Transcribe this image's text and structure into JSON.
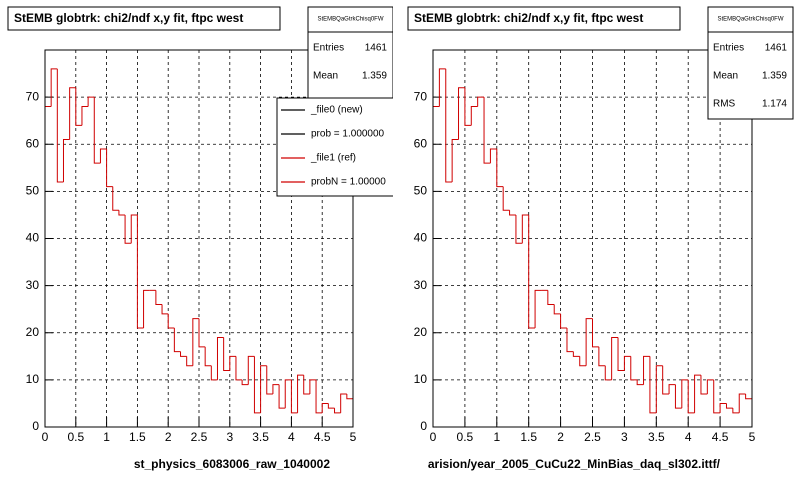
{
  "chart_data": [
    {
      "type": "histogram",
      "title": "StEMB globtrk: chi2/ndf x,y fit, ftpc west",
      "x_label": "st_physics_6083006_raw_1040002",
      "bins": [
        0,
        0.1,
        0.2,
        0.3,
        0.4,
        0.5,
        0.6,
        0.7,
        0.8,
        0.9,
        1,
        1.1,
        1.2,
        1.3,
        1.4,
        1.5,
        1.6,
        1.7,
        1.8,
        1.9,
        2,
        2.1,
        2.2,
        2.3,
        2.4,
        2.5,
        2.6,
        2.7,
        2.8,
        2.9,
        3,
        3.1,
        3.2,
        3.3,
        3.4,
        3.5,
        3.6,
        3.7,
        3.8,
        3.9,
        4,
        4.1,
        4.2,
        4.3,
        4.4,
        4.5,
        4.6,
        4.7,
        4.8,
        4.9,
        5
      ],
      "series": [
        {
          "name": "_file1 (ref)",
          "color": "#d00000",
          "values": [
            68,
            76,
            52,
            61,
            72,
            64,
            68,
            70,
            56,
            59,
            51,
            46,
            45,
            39,
            45,
            21,
            29,
            29,
            26,
            24,
            21,
            16,
            15,
            13,
            23,
            17,
            13,
            10,
            19,
            12,
            15,
            10,
            9,
            15,
            3,
            13,
            7,
            9,
            4,
            10,
            3,
            11,
            7,
            10,
            3,
            5,
            4,
            3,
            7,
            6
          ]
        }
      ],
      "xlim": [
        0,
        5
      ],
      "ylim": [
        0,
        80
      ],
      "xticks": [
        0,
        0.5,
        1,
        1.5,
        2,
        2.5,
        3,
        3.5,
        4,
        4.5,
        5
      ],
      "yticks": [
        0,
        10,
        20,
        30,
        40,
        50,
        60,
        70
      ],
      "grid": true,
      "stats": {
        "name": "StEMBQaGtrkChisq0FW",
        "entries_label": "Entries",
        "entries": 1461,
        "mean_label": "Mean",
        "mean": 1.359
      },
      "legend": [
        {
          "label": "_file0 (new)",
          "color": "#000000"
        },
        {
          "label": "prob = 1.000000",
          "color": "#000000"
        },
        {
          "label": "_file1 (ref)",
          "color": "#d00000"
        },
        {
          "label": "probN = 1.00000",
          "color": "#d00000"
        }
      ]
    },
    {
      "type": "histogram",
      "title": "StEMB globtrk: chi2/ndf x,y fit, ftpc west",
      "x_label": "arision/year_2005_CuCu22_MinBias_daq_sl302.ittf/",
      "bins": [
        0,
        0.1,
        0.2,
        0.3,
        0.4,
        0.5,
        0.6,
        0.7,
        0.8,
        0.9,
        1,
        1.1,
        1.2,
        1.3,
        1.4,
        1.5,
        1.6,
        1.7,
        1.8,
        1.9,
        2,
        2.1,
        2.2,
        2.3,
        2.4,
        2.5,
        2.6,
        2.7,
        2.8,
        2.9,
        3,
        3.1,
        3.2,
        3.3,
        3.4,
        3.5,
        3.6,
        3.7,
        3.8,
        3.9,
        4,
        4.1,
        4.2,
        4.3,
        4.4,
        4.5,
        4.6,
        4.7,
        4.8,
        4.9,
        5
      ],
      "series": [
        {
          "name": "_file1 (ref)",
          "color": "#d00000",
          "values": [
            68,
            76,
            52,
            61,
            72,
            64,
            68,
            70,
            56,
            59,
            51,
            46,
            45,
            39,
            45,
            21,
            29,
            29,
            26,
            24,
            21,
            16,
            15,
            13,
            23,
            17,
            13,
            10,
            19,
            12,
            15,
            10,
            9,
            15,
            3,
            13,
            7,
            9,
            4,
            10,
            3,
            11,
            7,
            10,
            3,
            5,
            4,
            3,
            7,
            6
          ]
        }
      ],
      "xlim": [
        0,
        5
      ],
      "ylim": [
        0,
        80
      ],
      "xticks": [
        0,
        0.5,
        1,
        1.5,
        2,
        2.5,
        3,
        3.5,
        4,
        4.5,
        5
      ],
      "yticks": [
        0,
        10,
        20,
        30,
        40,
        50,
        60,
        70
      ],
      "grid": true,
      "stats": {
        "name": "StEMBQaGtrkChisq0FW",
        "entries_label": "Entries",
        "entries": 1461,
        "mean_label": "Mean",
        "mean": 1.359,
        "rms_label": "RMS",
        "rms": 1.174
      }
    }
  ]
}
